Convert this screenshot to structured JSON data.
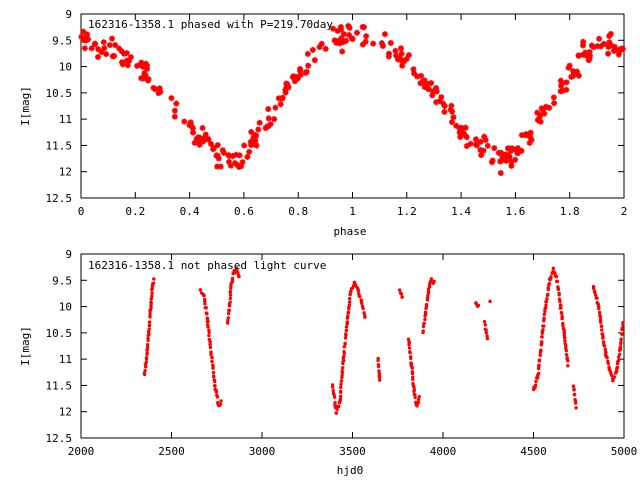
{
  "chart_data": [
    {
      "type": "scatter",
      "title": "162316-1358.1 phased with P=219.70day",
      "xlabel": "phase",
      "ylabel": "I[mag]",
      "xlim": [
        0,
        2
      ],
      "ylim": [
        12.5,
        9
      ],
      "y_inverted": true,
      "x_ticks": [
        0,
        0.2,
        0.4,
        0.6,
        0.8,
        1,
        1.2,
        1.4,
        1.6,
        1.8,
        2
      ],
      "x_tick_labels": [
        "0",
        "0.2",
        "0.4",
        "0.6",
        "0.8",
        "1",
        "1.2",
        "1.4",
        "1.6",
        "1.8",
        "2"
      ],
      "y_ticks": [
        9,
        9.5,
        10,
        10.5,
        11,
        11.5,
        12,
        12.5
      ],
      "y_tick_labels": [
        "9",
        "9.5",
        "10",
        "10.5",
        "11",
        "11.5",
        "12",
        "12.5"
      ],
      "grid": false,
      "legend": "none",
      "series_color": "#ff0000",
      "marker": "asterisk",
      "trend": [
        [
          0.0,
          9.55
        ],
        [
          0.05,
          9.62
        ],
        [
          0.1,
          9.68
        ],
        [
          0.15,
          9.8
        ],
        [
          0.2,
          9.95
        ],
        [
          0.25,
          10.2
        ],
        [
          0.3,
          10.5
        ],
        [
          0.35,
          10.8
        ],
        [
          0.4,
          11.15
        ],
        [
          0.45,
          11.45
        ],
        [
          0.5,
          11.65
        ],
        [
          0.55,
          11.8
        ],
        [
          0.6,
          11.65
        ],
        [
          0.65,
          11.3
        ],
        [
          0.7,
          10.95
        ],
        [
          0.75,
          10.55
        ],
        [
          0.8,
          10.15
        ],
        [
          0.85,
          9.8
        ],
        [
          0.9,
          9.55
        ],
        [
          0.95,
          9.45
        ],
        [
          1.0,
          9.4
        ],
        [
          1.05,
          9.45
        ],
        [
          1.1,
          9.55
        ],
        [
          1.15,
          9.7
        ],
        [
          1.2,
          9.95
        ],
        [
          1.25,
          10.2
        ],
        [
          1.3,
          10.5
        ],
        [
          1.35,
          10.8
        ],
        [
          1.4,
          11.15
        ],
        [
          1.45,
          11.45
        ],
        [
          1.5,
          11.65
        ],
        [
          1.55,
          11.8
        ],
        [
          1.6,
          11.65
        ],
        [
          1.65,
          11.3
        ],
        [
          1.7,
          10.95
        ],
        [
          1.75,
          10.55
        ],
        [
          1.8,
          10.15
        ],
        [
          1.85,
          9.8
        ],
        [
          1.9,
          9.6
        ],
        [
          1.95,
          9.55
        ],
        [
          2.0,
          9.58
        ]
      ],
      "scatter_mag": 0.18
    },
    {
      "type": "scatter",
      "title": "162316-1358.1 not phased light curve",
      "xlabel": "hjd0",
      "ylabel": "I[mag]",
      "xlim": [
        2000,
        5000
      ],
      "ylim": [
        12.5,
        9
      ],
      "y_inverted": true,
      "x_ticks": [
        2000,
        2500,
        3000,
        3500,
        4000,
        4500,
        5000
      ],
      "x_tick_labels": [
        "2000",
        "2500",
        "3000",
        "3500",
        "4000",
        "4500",
        "5000"
      ],
      "y_ticks": [
        9,
        9.5,
        10,
        10.5,
        11,
        11.5,
        12,
        12.5
      ],
      "y_tick_labels": [
        "9",
        "9.5",
        "10",
        "10.5",
        "11",
        "11.5",
        "12",
        "12.5"
      ],
      "grid": false,
      "legend": "none",
      "series_color": "#ff0000",
      "marker": "dot",
      "segments": [
        [
          [
            2350,
            11.3
          ],
          [
            2365,
            10.9
          ],
          [
            2375,
            10.5
          ],
          [
            2385,
            10.0
          ],
          [
            2395,
            9.6
          ],
          [
            2402,
            9.5
          ]
        ],
        [
          [
            2660,
            9.7
          ],
          [
            2680,
            9.8
          ],
          [
            2700,
            10.3
          ],
          [
            2720,
            10.9
          ],
          [
            2740,
            11.5
          ],
          [
            2760,
            11.9
          ],
          [
            2775,
            11.8
          ]
        ],
        [
          [
            2810,
            10.3
          ],
          [
            2820,
            10.0
          ],
          [
            2830,
            9.6
          ],
          [
            2845,
            9.35
          ],
          [
            2860,
            9.3
          ],
          [
            2875,
            9.45
          ]
        ],
        [
          [
            3390,
            11.5
          ],
          [
            3410,
            12.0
          ],
          [
            3430,
            11.8
          ],
          [
            3450,
            11.0
          ],
          [
            3470,
            10.3
          ],
          [
            3490,
            9.7
          ],
          [
            3510,
            9.55
          ],
          [
            3530,
            9.7
          ],
          [
            3550,
            9.9
          ],
          [
            3570,
            10.2
          ]
        ],
        [
          [
            3640,
            11.0
          ],
          [
            3650,
            11.4
          ]
        ],
        [
          [
            3760,
            9.7
          ],
          [
            3775,
            9.8
          ]
        ],
        [
          [
            3810,
            10.6
          ],
          [
            3825,
            11.1
          ],
          [
            3840,
            11.6
          ],
          [
            3855,
            11.9
          ],
          [
            3870,
            11.7
          ]
        ],
        [
          [
            3890,
            10.5
          ],
          [
            3905,
            10.1
          ],
          [
            3920,
            9.7
          ],
          [
            3935,
            9.5
          ],
          [
            3950,
            9.55
          ]
        ],
        [
          [
            4180,
            9.9
          ],
          [
            4195,
            10.0
          ]
        ],
        [
          [
            4230,
            10.3
          ],
          [
            4245,
            10.6
          ]
        ],
        [
          [
            4260,
            9.9
          ]
        ],
        [
          [
            4500,
            11.6
          ],
          [
            4525,
            11.3
          ],
          [
            4550,
            10.5
          ],
          [
            4570,
            9.9
          ],
          [
            4590,
            9.5
          ],
          [
            4610,
            9.3
          ],
          [
            4630,
            9.5
          ],
          [
            4650,
            10.0
          ],
          [
            4670,
            10.5
          ],
          [
            4690,
            11.1
          ]
        ],
        [
          [
            4720,
            11.5
          ],
          [
            4735,
            11.9
          ]
        ],
        [
          [
            4830,
            9.6
          ],
          [
            4860,
            10.0
          ],
          [
            4880,
            10.5
          ],
          [
            4900,
            10.9
          ],
          [
            4920,
            11.2
          ],
          [
            4940,
            11.4
          ],
          [
            4960,
            11.2
          ],
          [
            4980,
            10.8
          ],
          [
            4995,
            10.3
          ]
        ]
      ]
    }
  ]
}
